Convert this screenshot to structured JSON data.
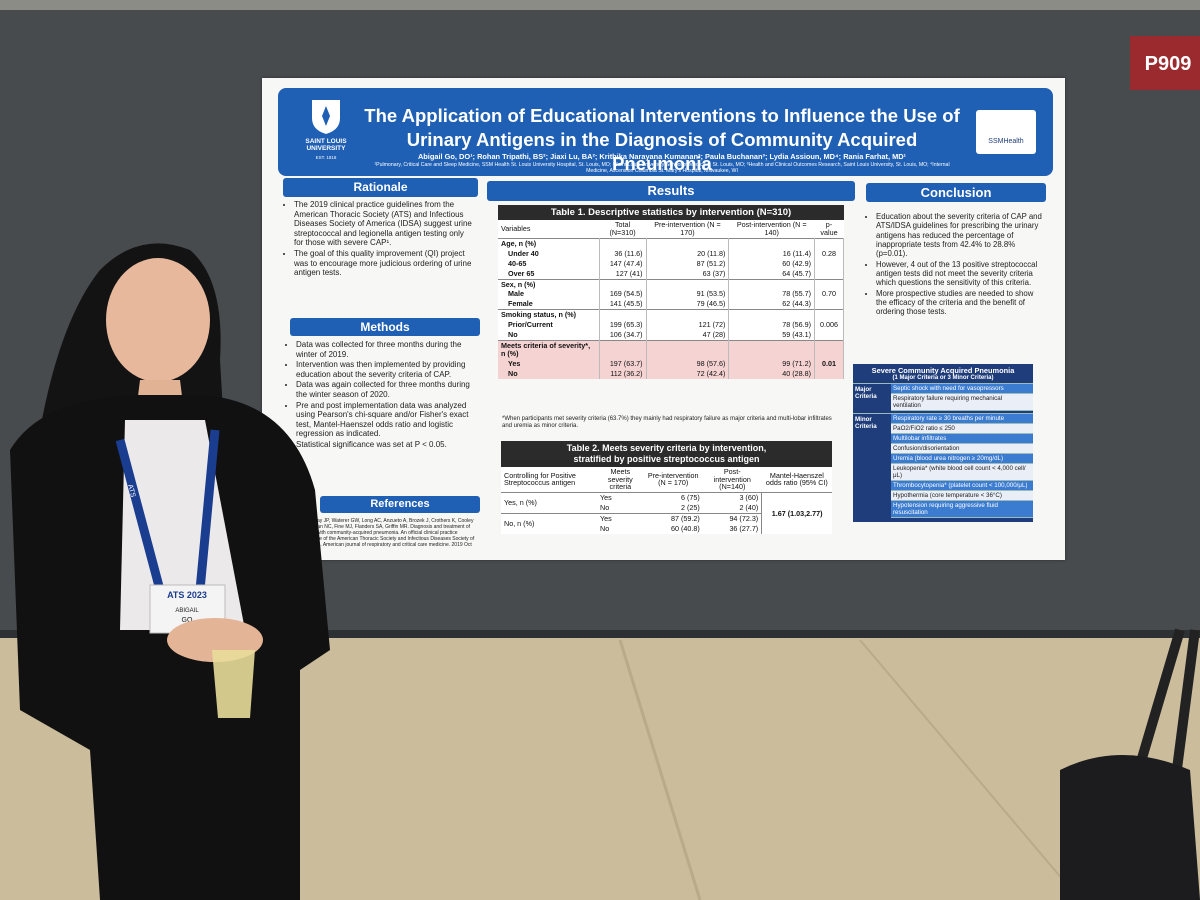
{
  "sign": "P909",
  "poster": {
    "logo_left": {
      "name": "SAINT LOUIS UNIVERSITY",
      "est": "EST. 1818"
    },
    "logo_right": "SSMHealth",
    "title": [
      "The Application of Educational Interventions to Influence the Use of",
      "Urinary Antigens in the Diagnosis of Community Acquired Pneumonia"
    ],
    "authors": "Abigail Go, DO¹; Rohan Tripathi, BS²; Jiaxi Lu, BA²; Krithika Narayana Kumanan³; Paula Buchanan³; Lydia Assioun, MD⁴; Rania Farhat, MD¹",
    "affiliations": "¹Pulmonary, Critical Care and Sleep Medicine, SSM Health St. Louis University Hospital, St. Louis, MO; ²Saint Louis University School of Medicine, St. Louis, MO; ³Health and Clinical Outcomes Research, Saint Louis University, St. Louis, MO; ⁴Internal Medicine, Ascension Columbia St. Mary's Hospital, Milwaukee, WI",
    "rationale": {
      "heading": "Rationale",
      "bullets": [
        "The 2019 clinical practice guidelines from the American Thoracic Society (ATS) and Infectious Diseases Society of America (IDSA) suggest urine streptococcal and legionella antigen testing only for those with severe CAP¹.",
        "The goal of this quality improvement (QI) project was to encourage more judicious ordering of urine antigen tests."
      ]
    },
    "methods": {
      "heading": "Methods",
      "bullets": [
        "Data was collected for three months during the winter of 2019.",
        "Intervention was then implemented by providing education about the severity criteria of CAP.",
        "Data was again collected for three months during the winter season of 2020.",
        "Pre and post implementation data was analyzed using Pearson's chi-square and/or Fisher's exact test, Mantel-Haenszel odds ratio and logistic regression as indicated.",
        "Statistical significance was set at P < 0.05."
      ]
    },
    "references": {
      "heading": "References",
      "text": "1. Metlay JP, Waterer GW, Long AC, Anzueto A, Brozek J, Crothers K, Cooley LA, Dean NC, Fine MJ, Flanders SA, Griffin MR. Diagnosis and treatment of adults with community-acquired pneumonia. An official clinical practice guideline of the American Thoracic Society and Infectious Diseases Society of America. American journal of respiratory and critical care medicine. 2019 Oct"
    },
    "results": {
      "heading": "Results",
      "table1": {
        "title": "Table 1. Descriptive statistics by intervention (N=310)",
        "header": [
          "Variables",
          "Total (N=310)",
          "Pre-intervention (N = 170)",
          "Post-intervention (N = 140)",
          "p-value"
        ],
        "groups": [
          {
            "label": "Age, n (%)",
            "rows": [
              {
                "label": "Under 40",
                "cells": [
                  "36 (11.6)",
                  "20 (11.8)",
                  "16 (11.4)"
                ],
                "p": "0.28"
              },
              {
                "label": "40-65",
                "cells": [
                  "147 (47.4)",
                  "87 (51.2)",
                  "60 (42.9)"
                ]
              },
              {
                "label": "Over 65",
                "cells": [
                  "127 (41)",
                  "63 (37)",
                  "64 (45.7)"
                ]
              }
            ]
          },
          {
            "label": "Sex, n (%)",
            "rows": [
              {
                "label": "Male",
                "cells": [
                  "169 (54.5)",
                  "91 (53.5)",
                  "78 (55.7)"
                ],
                "p": "0.70"
              },
              {
                "label": "Female",
                "cells": [
                  "141 (45.5)",
                  "79 (46.5)",
                  "62 (44.3)"
                ]
              }
            ]
          },
          {
            "label": "Smoking status, n (%)",
            "rows": [
              {
                "label": "Prior/Current",
                "cells": [
                  "199 (65.3)",
                  "121 (72)",
                  "78 (56.9)"
                ],
                "p": "0.006"
              },
              {
                "label": "No",
                "cells": [
                  "106 (34.7)",
                  "47 (28)",
                  "59 (43.1)"
                ]
              }
            ]
          },
          {
            "label": "Meets criteria of severity*, n (%)",
            "highlight": true,
            "rows": [
              {
                "label": "Yes",
                "cells": [
                  "197 (63.7)",
                  "98 (57.6)",
                  "99 (71.2)"
                ],
                "p": "0.01"
              },
              {
                "label": "No",
                "cells": [
                  "112 (36.2)",
                  "72 (42.4)",
                  "40 (28.8)"
                ]
              }
            ]
          }
        ]
      },
      "footnote": "*When participants met severity criteria (63.7%) they mainly had respiratory failure as major criteria and multi-lobar infiltrates and uremia as minor criteria.",
      "table2": {
        "title": [
          "Table 2. Meets severity criteria by intervention,",
          "stratified by positive streptococcus antigen"
        ],
        "header": [
          "Controlling for Positive Streptococcus antigen",
          "Meets severity criteria",
          "Pre-intervention (N = 170)",
          "Post-intervention (N=140)",
          "Mantel-Haenszel odds ratio (95% CI)"
        ],
        "groups": [
          {
            "label": "Yes, n (%)",
            "rows": [
              {
                "label": "Yes",
                "cells": [
                  "6 (75)",
                  "3 (60)"
                ]
              },
              {
                "label": "No",
                "cells": [
                  "2 (25)",
                  "2 (40)"
                ]
              }
            ]
          },
          {
            "label": "No, n (%)",
            "rows": [
              {
                "label": "Yes",
                "cells": [
                  "87 (59.2)",
                  "94 (72.3)"
                ]
              },
              {
                "label": "No",
                "cells": [
                  "60 (40.8)",
                  "36 (27.7)"
                ]
              }
            ]
          }
        ],
        "odds_ratio": "1.67 (1.03,2.77)"
      }
    },
    "conclusion": {
      "heading": "Conclusion",
      "bullets": [
        "Education about the severity criteria of CAP and ATS/IDSA guidelines for prescribing the urinary antigens has reduced the percentage of inappropriate tests from 42.4% to 28.8% (p=0.01).",
        "However, 4 out of the 13 positive streptococcal antigen tests did not meet the severity criteria which questions the sensitivity of this criteria.",
        "More prospective studies are needed to show the efficacy of the criteria and the benefit of ordering those tests."
      ]
    },
    "severity_box": {
      "title": [
        "Severe Community Acquired Pneumonia",
        "(1 Major Criteria or 3 Minor Criteria)"
      ],
      "major": {
        "label": "Major Criteria",
        "items": [
          "Septic shock with need for vasopressors",
          "Respiratory failure requiring mechanical ventilation"
        ]
      },
      "minor": {
        "label": "Minor Criteria",
        "items": [
          "Respiratory rate ≥ 30 breaths per minute",
          "PaO2/FiO2 ratio ≤ 250",
          "Multilobar infiltrates",
          "Confusion/disorientation",
          "Uremia (blood urea nitrogen ≥ 20mg/dL)",
          "Leukopenia* (white blood cell count < 4,000 cell/μL)",
          "Thrombocytopenia* (platelet count < 100,000/μL)",
          "Hypothermia (core temperature < 36°C)",
          "Hypotension requiring aggressive fluid resuscitation"
        ]
      }
    }
  },
  "badge": {
    "event": "ATS 2023",
    "first": "ABIGAIL",
    "last": "GO"
  },
  "lanyard": "ATS"
}
